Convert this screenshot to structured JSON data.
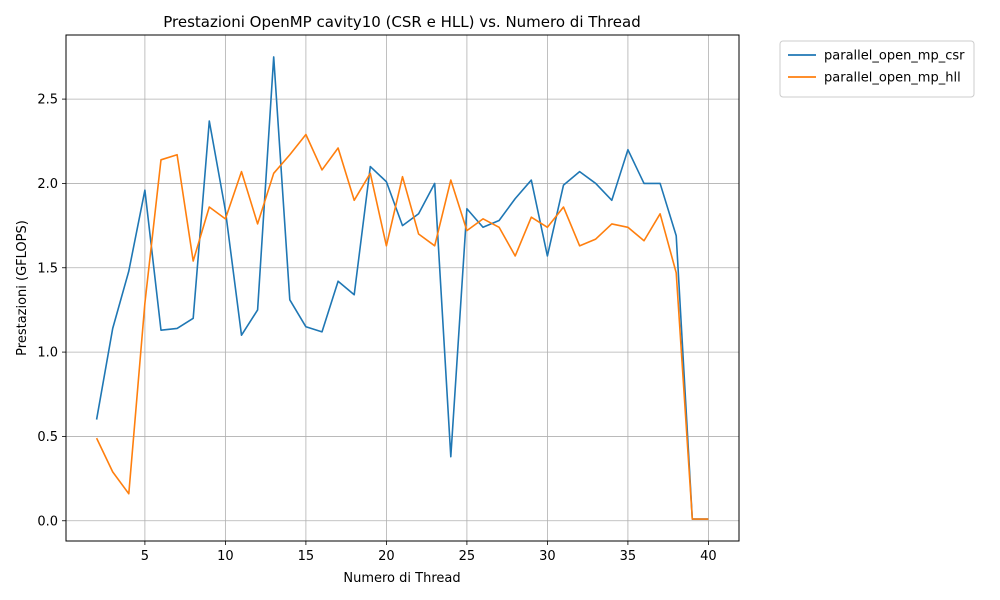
{
  "chart_data": {
    "type": "line",
    "title": "Prestazioni OpenMP cavity10 (CSR e HLL) vs. Numero di Thread",
    "xlabel": "Numero di Thread",
    "ylabel": "Prestazioni (GFLOPS)",
    "xlim": [
      0.1,
      41.9
    ],
    "ylim": [
      -0.12,
      2.88
    ],
    "xticks": [
      5,
      10,
      15,
      20,
      25,
      30,
      35,
      40
    ],
    "xtick_labels": [
      "5",
      "10",
      "15",
      "20",
      "25",
      "30",
      "35",
      "40"
    ],
    "yticks": [
      0.0,
      0.5,
      1.0,
      1.5,
      2.0,
      2.5
    ],
    "ytick_labels": [
      "0.0",
      "0.5",
      "1.0",
      "1.5",
      "2.0",
      "2.5"
    ],
    "grid": true,
    "legend_position": "outside-top-right",
    "x": [
      2,
      3,
      4,
      5,
      6,
      7,
      8,
      9,
      10,
      11,
      12,
      13,
      14,
      15,
      16,
      17,
      18,
      19,
      20,
      21,
      22,
      23,
      24,
      25,
      26,
      27,
      28,
      29,
      30,
      31,
      32,
      33,
      34,
      35,
      36,
      37,
      38,
      39,
      40
    ],
    "series": [
      {
        "name": "parallel_open_mp_csr",
        "color": "#1f77b4",
        "values": [
          0.6,
          1.14,
          1.48,
          1.96,
          1.13,
          1.14,
          1.2,
          2.37,
          1.84,
          1.1,
          1.25,
          2.75,
          1.31,
          1.15,
          1.12,
          1.42,
          1.34,
          2.1,
          2.01,
          1.75,
          1.82,
          2.0,
          0.38,
          1.85,
          1.74,
          1.78,
          1.91,
          2.02,
          1.57,
          1.99,
          2.07,
          2.0,
          1.9,
          2.2,
          2.0,
          2.0,
          1.69,
          0.01,
          0.01
        ]
      },
      {
        "name": "parallel_open_mp_hll",
        "color": "#ff7f0e",
        "values": [
          0.49,
          0.29,
          0.16,
          1.29,
          2.14,
          2.17,
          1.54,
          1.86,
          1.79,
          2.07,
          1.76,
          2.06,
          2.17,
          2.29,
          2.08,
          2.21,
          1.9,
          2.06,
          1.63,
          2.04,
          1.7,
          1.63,
          2.02,
          1.72,
          1.79,
          1.74,
          1.57,
          1.8,
          1.74,
          1.86,
          1.63,
          1.67,
          1.76,
          1.74,
          1.66,
          1.82,
          1.47,
          0.01,
          0.01
        ]
      }
    ]
  }
}
